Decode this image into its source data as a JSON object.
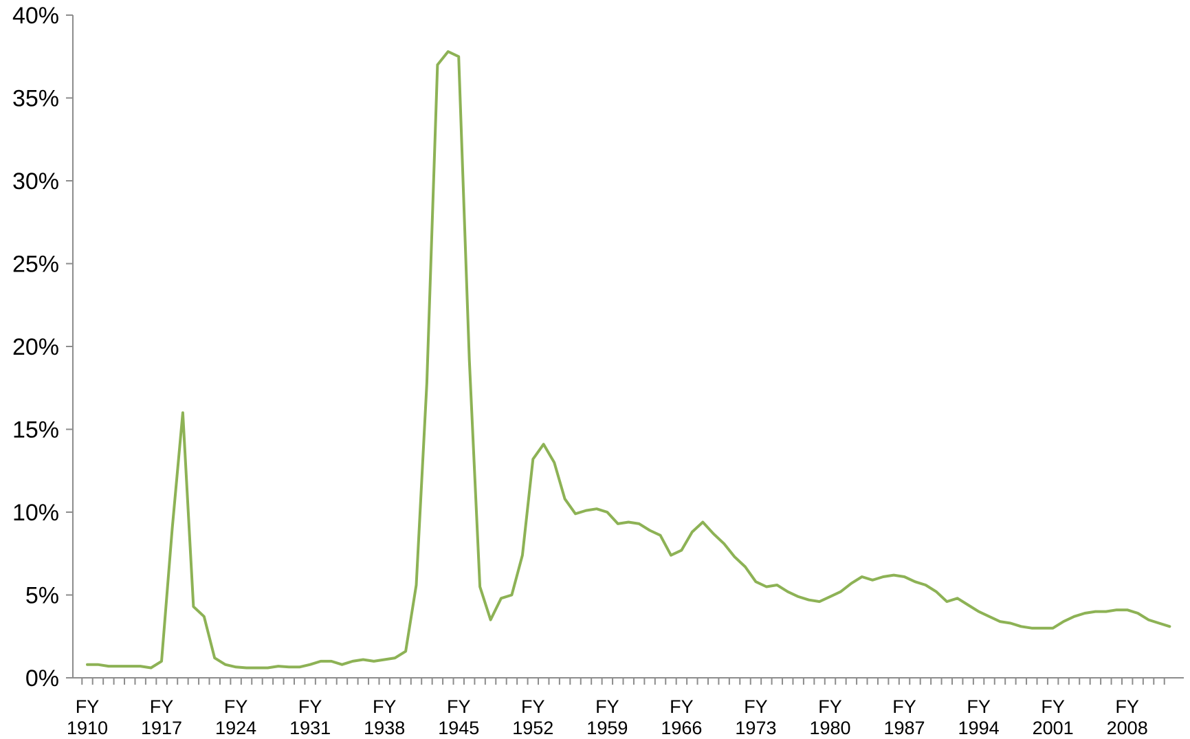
{
  "chart_data": {
    "type": "line",
    "title": "",
    "xlabel": "",
    "ylabel": "",
    "x_range": [
      1910,
      2012
    ],
    "ylim": [
      0,
      40
    ],
    "y_ticks": [
      "0%",
      "5%",
      "10%",
      "15%",
      "20%",
      "25%",
      "30%",
      "35%",
      "40%"
    ],
    "y_tick_values": [
      0,
      5,
      10,
      15,
      20,
      25,
      30,
      35,
      40
    ],
    "x_tick_years": [
      1910,
      1917,
      1924,
      1931,
      1938,
      1945,
      1952,
      1959,
      1966,
      1973,
      1980,
      1987,
      1994,
      2001,
      2008
    ],
    "x_tick_labels": [
      {
        "line1": "FY",
        "line2": "1910"
      },
      {
        "line1": "FY",
        "line2": "1917"
      },
      {
        "line1": "FY",
        "line2": "1924"
      },
      {
        "line1": "FY",
        "line2": "1931"
      },
      {
        "line1": "FY",
        "line2": "1938"
      },
      {
        "line1": "FY",
        "line2": "1945"
      },
      {
        "line1": "FY",
        "line2": "1952"
      },
      {
        "line1": "FY",
        "line2": "1959"
      },
      {
        "line1": "FY",
        "line2": "1966"
      },
      {
        "line1": "FY",
        "line2": "1973"
      },
      {
        "line1": "FY",
        "line2": "1980"
      },
      {
        "line1": "FY",
        "line2": "1987"
      },
      {
        "line1": "FY",
        "line2": "1994"
      },
      {
        "line1": "FY",
        "line2": "2001"
      },
      {
        "line1": "FY",
        "line2": "2008"
      }
    ],
    "grid": false,
    "legend": "none",
    "series": [
      {
        "color": "#8db255",
        "x": [
          1910,
          1911,
          1912,
          1913,
          1914,
          1915,
          1916,
          1917,
          1918,
          1919,
          1920,
          1921,
          1922,
          1923,
          1924,
          1925,
          1926,
          1927,
          1928,
          1929,
          1930,
          1931,
          1932,
          1933,
          1934,
          1935,
          1936,
          1937,
          1938,
          1939,
          1940,
          1941,
          1942,
          1943,
          1944,
          1945,
          1946,
          1947,
          1948,
          1949,
          1950,
          1951,
          1952,
          1953,
          1954,
          1955,
          1956,
          1957,
          1958,
          1959,
          1960,
          1961,
          1962,
          1963,
          1964,
          1965,
          1966,
          1967,
          1968,
          1969,
          1970,
          1971,
          1972,
          1973,
          1974,
          1975,
          1976,
          1977,
          1978,
          1979,
          1980,
          1981,
          1982,
          1983,
          1984,
          1985,
          1986,
          1987,
          1988,
          1989,
          1990,
          1991,
          1992,
          1993,
          1994,
          1995,
          1996,
          1997,
          1998,
          1999,
          2000,
          2001,
          2002,
          2003,
          2004,
          2005,
          2006,
          2007,
          2008,
          2009,
          2010,
          2011,
          2012
        ],
        "values": [
          0.8,
          0.8,
          0.7,
          0.7,
          0.7,
          0.7,
          0.6,
          1.0,
          9.0,
          16.0,
          4.3,
          3.7,
          1.2,
          0.8,
          0.65,
          0.6,
          0.6,
          0.6,
          0.7,
          0.65,
          0.65,
          0.8,
          1.0,
          1.0,
          0.8,
          1.0,
          1.1,
          1.0,
          1.1,
          1.2,
          1.6,
          5.6,
          17.8,
          37.0,
          37.8,
          37.5,
          19.2,
          5.5,
          3.5,
          4.8,
          5.0,
          7.4,
          13.2,
          14.1,
          13.0,
          10.8,
          9.9,
          10.1,
          10.2,
          10.0,
          9.3,
          9.4,
          9.3,
          8.9,
          8.6,
          7.4,
          7.7,
          8.8,
          9.4,
          8.7,
          8.1,
          7.3,
          6.7,
          5.8,
          5.5,
          5.6,
          5.2,
          4.9,
          4.7,
          4.6,
          4.9,
          5.2,
          5.7,
          6.1,
          5.9,
          6.1,
          6.2,
          6.1,
          5.8,
          5.6,
          5.2,
          4.6,
          4.8,
          4.4,
          4.0,
          3.7,
          3.4,
          3.3,
          3.1,
          3.0,
          3.0,
          3.0,
          3.4,
          3.7,
          3.9,
          4.0,
          4.0,
          4.1,
          4.1,
          3.9,
          3.5,
          3.3,
          3.1
        ]
      }
    ]
  }
}
